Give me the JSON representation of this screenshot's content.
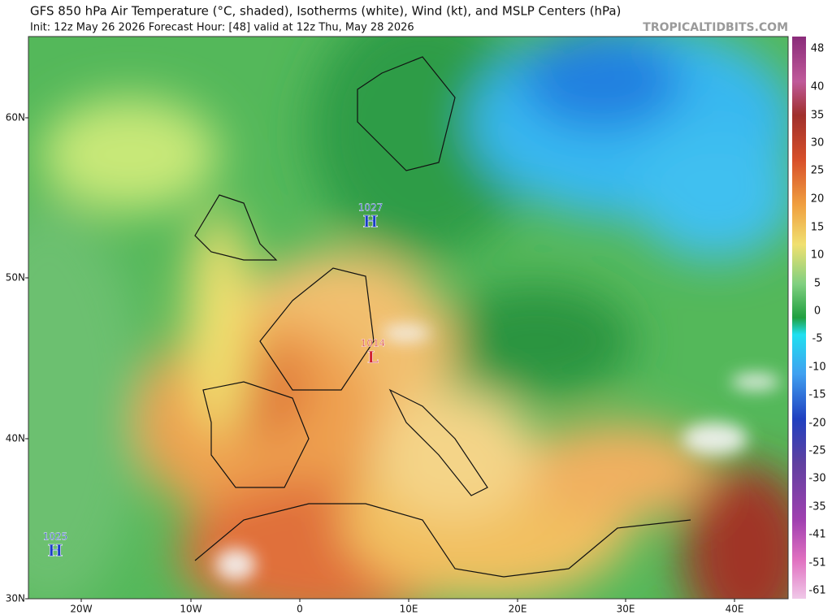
{
  "header": {
    "title": "GFS 850 hPa Air Temperature (°C, shaded), Isotherms (white), Wind (kt), and MSLP Centers (hPa)",
    "subtitle": "Init: 12z May 26 2026   Forecast Hour: [48]   valid at 12z Thu, May 28 2026",
    "brand": "TROPICALTIDBITS.COM"
  },
  "map": {
    "lat_labels": [
      "60N",
      "50N",
      "40N",
      "30N"
    ],
    "lon_labels": [
      "20W",
      "10W",
      "0",
      "10E",
      "20E",
      "30E",
      "40E"
    ],
    "pressure_centers": [
      {
        "value": "1027",
        "letter": "H"
      },
      {
        "value": "1014",
        "letter": "L"
      },
      {
        "value": "1025",
        "letter": "H"
      }
    ]
  },
  "colorbar": {
    "labels": [
      "48",
      "40",
      "35",
      "30",
      "25",
      "20",
      "15",
      "10",
      "5",
      "0",
      "-5",
      "-10",
      "-15",
      "-20",
      "-25",
      "-30",
      "-35",
      "-41",
      "-51",
      "-61"
    ]
  }
}
